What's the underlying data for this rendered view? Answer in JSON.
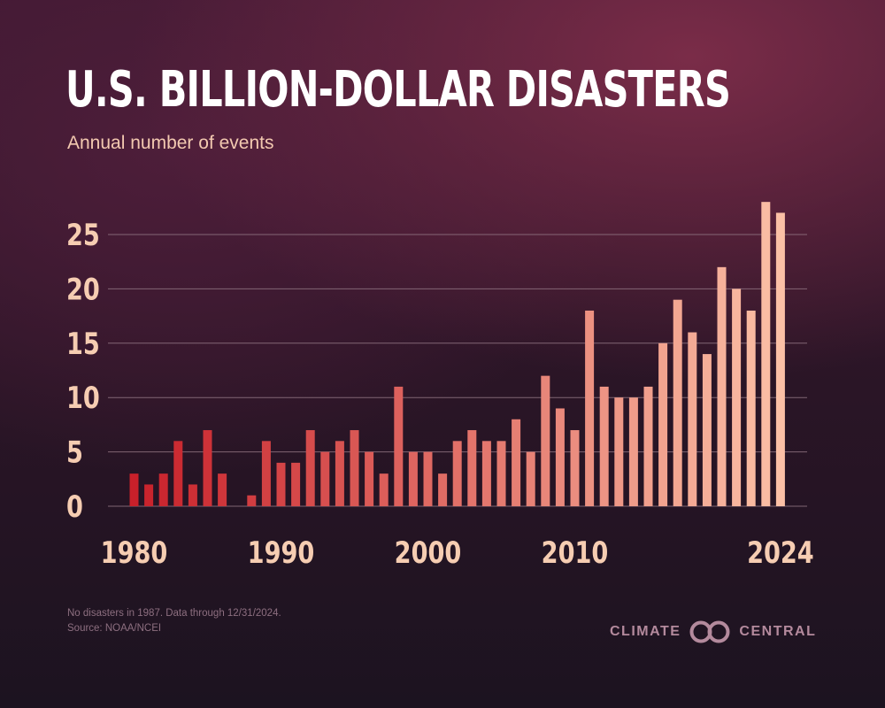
{
  "title": "U.S. BILLION-DOLLAR DISASTERS",
  "subtitle": "Annual number of events",
  "footnote": {
    "line1": "No disasters in 1987. Data through 12/31/2024.",
    "line2": "Source: NOAA/NCEI"
  },
  "logo": {
    "left_text": "CLIMATE",
    "right_text": "CENTRAL",
    "icon": "interlocking-rings-icon"
  },
  "colors": {
    "bar_start": "#c8202a",
    "bar_end": "#fbc0a6",
    "tick_text": "#f6cdb2",
    "gridline": "#8f7381",
    "title": "#ffffff"
  },
  "chart_data": {
    "type": "bar",
    "title": "U.S. BILLION-DOLLAR DISASTERS",
    "subtitle": "Annual number of events",
    "xlabel": "",
    "ylabel": "",
    "ylim": [
      0,
      28
    ],
    "grid": true,
    "yticks": [
      0,
      5,
      10,
      15,
      20,
      25
    ],
    "xtick_labels": [
      "1980",
      "1990",
      "2000",
      "2010",
      "2024"
    ],
    "categories": [
      1980,
      1981,
      1982,
      1983,
      1984,
      1985,
      1986,
      1987,
      1988,
      1989,
      1990,
      1991,
      1992,
      1993,
      1994,
      1995,
      1996,
      1997,
      1998,
      1999,
      2000,
      2001,
      2002,
      2003,
      2004,
      2005,
      2006,
      2007,
      2008,
      2009,
      2010,
      2011,
      2012,
      2013,
      2014,
      2015,
      2016,
      2017,
      2018,
      2019,
      2020,
      2021,
      2022,
      2023,
      2024
    ],
    "values": [
      3,
      2,
      3,
      6,
      2,
      7,
      3,
      0,
      1,
      6,
      4,
      4,
      7,
      5,
      6,
      7,
      5,
      3,
      11,
      5,
      5,
      3,
      6,
      7,
      6,
      6,
      8,
      5,
      12,
      9,
      7,
      18,
      11,
      10,
      10,
      11,
      15,
      19,
      16,
      14,
      22,
      20,
      18,
      28,
      27
    ]
  }
}
